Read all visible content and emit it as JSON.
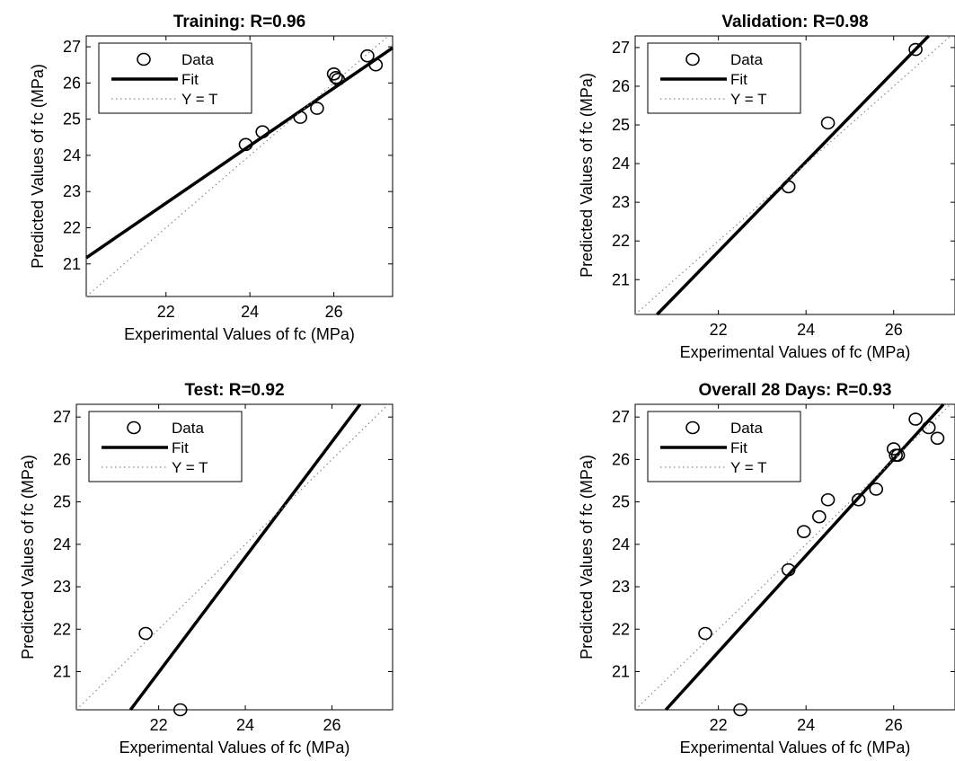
{
  "chart_data": [
    {
      "type": "scatter",
      "title": "Training: R=0.96",
      "xlabel": "Experimental Values of fc (MPa)",
      "ylabel": "Predicted Values of fc (MPa)",
      "xlim": [
        20.1,
        27.4
      ],
      "ylim": [
        20.1,
        27.3
      ],
      "xticks": [
        22,
        24,
        26
      ],
      "yticks": [
        21,
        22,
        23,
        24,
        25,
        26,
        27
      ],
      "grid": false,
      "legend": {
        "placement": "top-left",
        "entries": [
          "Data",
          "Fit",
          "Y = T"
        ]
      },
      "series": [
        {
          "name": "Data",
          "kind": "points",
          "x": [
            23.9,
            24.3,
            25.2,
            25.6,
            26.0,
            26.05,
            26.1,
            26.8,
            27.0
          ],
          "y": [
            24.3,
            24.65,
            25.05,
            25.3,
            26.25,
            26.15,
            26.1,
            26.75,
            26.5
          ]
        },
        {
          "name": "Fit",
          "kind": "line",
          "x": [
            20.1,
            27.4
          ],
          "y": [
            21.17,
            26.97
          ]
        },
        {
          "name": "Y = T",
          "kind": "line",
          "x": [
            20.1,
            27.4
          ],
          "y": [
            20.1,
            27.4
          ]
        }
      ]
    },
    {
      "type": "scatter",
      "title": "Validation: R=0.98",
      "xlabel": "Experimental Values of fc (MPa)",
      "ylabel": "Predicted Values of fc (MPa)",
      "xlim": [
        20.1,
        27.4
      ],
      "ylim": [
        20.1,
        27.3
      ],
      "xticks": [
        22,
        24,
        26
      ],
      "yticks": [
        21,
        22,
        23,
        24,
        25,
        26,
        27
      ],
      "grid": false,
      "legend": {
        "placement": "top-left",
        "entries": [
          "Data",
          "Fit",
          "Y = T"
        ]
      },
      "series": [
        {
          "name": "Data",
          "kind": "points",
          "x": [
            23.6,
            24.5,
            26.5
          ],
          "y": [
            23.4,
            25.05,
            26.95
          ]
        },
        {
          "name": "Fit",
          "kind": "line",
          "x": [
            20.6,
            27.4
          ],
          "y": [
            20.1,
            28.0
          ]
        },
        {
          "name": "Y = T",
          "kind": "line",
          "x": [
            20.1,
            27.4
          ],
          "y": [
            20.1,
            27.4
          ]
        }
      ]
    },
    {
      "type": "scatter",
      "title": "Test: R=0.92",
      "xlabel": "Experimental Values of fc (MPa)",
      "ylabel": "Predicted Values of fc (MPa)",
      "xlim": [
        20.1,
        27.4
      ],
      "ylim": [
        20.1,
        27.3
      ],
      "xticks": [
        22,
        24,
        26
      ],
      "yticks": [
        21,
        22,
        23,
        24,
        25,
        26,
        27
      ],
      "grid": false,
      "legend": {
        "placement": "top-left",
        "entries": [
          "Data",
          "Fit",
          "Y = T"
        ]
      },
      "series": [
        {
          "name": "Data",
          "kind": "points",
          "x": [
            21.7,
            22.5
          ],
          "y": [
            21.9,
            20.1
          ]
        },
        {
          "name": "Fit",
          "kind": "line",
          "x": [
            21.35,
            26.65
          ],
          "y": [
            20.1,
            27.3
          ]
        },
        {
          "name": "Y = T",
          "kind": "line",
          "x": [
            20.1,
            27.4
          ],
          "y": [
            20.1,
            27.4
          ]
        }
      ]
    },
    {
      "type": "scatter",
      "title": "Overall 28 Days: R=0.93",
      "xlabel": "Experimental Values of fc (MPa)",
      "ylabel": "Predicted Values of fc (MPa)",
      "xlim": [
        20.1,
        27.4
      ],
      "ylim": [
        20.1,
        27.3
      ],
      "xticks": [
        22,
        24,
        26
      ],
      "yticks": [
        21,
        22,
        23,
        24,
        25,
        26,
        27
      ],
      "grid": false,
      "legend": {
        "placement": "top-left",
        "entries": [
          "Data",
          "Fit",
          "Y = T"
        ]
      },
      "series": [
        {
          "name": "Data",
          "kind": "points",
          "x": [
            21.7,
            22.5,
            23.6,
            23.95,
            24.3,
            24.5,
            25.2,
            25.6,
            26.0,
            26.05,
            26.1,
            26.5,
            26.8,
            27.0
          ],
          "y": [
            21.9,
            20.1,
            23.4,
            24.3,
            24.65,
            25.05,
            25.05,
            25.3,
            26.25,
            26.1,
            26.1,
            26.95,
            26.75,
            26.5
          ]
        },
        {
          "name": "Fit",
          "kind": "line",
          "x": [
            20.8,
            27.4
          ],
          "y": [
            20.1,
            27.6
          ]
        },
        {
          "name": "Y = T",
          "kind": "line",
          "x": [
            20.1,
            27.4
          ],
          "y": [
            20.1,
            27.4
          ]
        }
      ]
    }
  ]
}
